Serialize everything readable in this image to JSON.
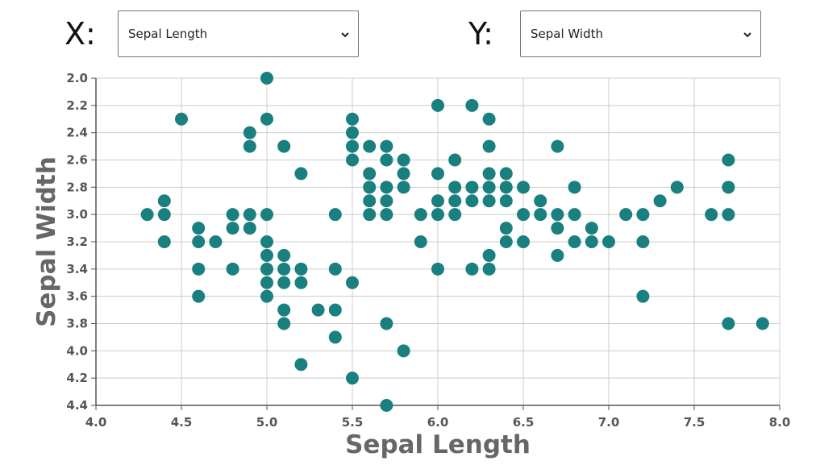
{
  "controls": {
    "x_label": "X:",
    "x_selected": "Sepal Length",
    "y_label": "Y:",
    "y_selected": "Sepal Width"
  },
  "colors": {
    "point": "#1a7f7f",
    "grid": "#cccccc",
    "axis": "#555555"
  },
  "chart_data": {
    "type": "scatter",
    "xlabel": "Sepal Length",
    "ylabel": "Sepal Width",
    "xlim": [
      4.0,
      8.0
    ],
    "ylim": [
      2.0,
      4.4
    ],
    "y_inverted": true,
    "grid": true,
    "xticks": [
      "4.0",
      "4.5",
      "5.0",
      "5.5",
      "6.0",
      "6.5",
      "7.0",
      "7.5",
      "8.0"
    ],
    "yticks": [
      "2.0",
      "2.2",
      "2.4",
      "2.6",
      "2.8",
      "3.0",
      "3.2",
      "3.4",
      "3.6",
      "3.8",
      "4.0",
      "4.2",
      "4.4"
    ],
    "points": [
      [
        5.0,
        2.0
      ],
      [
        4.5,
        2.3
      ],
      [
        5.0,
        2.3
      ],
      [
        5.5,
        2.3
      ],
      [
        6.3,
        2.3
      ],
      [
        6.0,
        2.2
      ],
      [
        6.2,
        2.2
      ],
      [
        4.9,
        2.4
      ],
      [
        5.5,
        2.4
      ],
      [
        4.9,
        2.5
      ],
      [
        5.1,
        2.5
      ],
      [
        5.5,
        2.5
      ],
      [
        5.6,
        2.5
      ],
      [
        5.7,
        2.5
      ],
      [
        6.3,
        2.5
      ],
      [
        6.7,
        2.5
      ],
      [
        5.5,
        2.6
      ],
      [
        5.7,
        2.6
      ],
      [
        5.8,
        2.6
      ],
      [
        6.1,
        2.6
      ],
      [
        7.7,
        2.6
      ],
      [
        5.2,
        2.7
      ],
      [
        5.6,
        2.7
      ],
      [
        5.8,
        2.7
      ],
      [
        6.0,
        2.7
      ],
      [
        6.3,
        2.7
      ],
      [
        6.4,
        2.7
      ],
      [
        5.6,
        2.8
      ],
      [
        5.7,
        2.8
      ],
      [
        5.8,
        2.8
      ],
      [
        6.1,
        2.8
      ],
      [
        6.2,
        2.8
      ],
      [
        6.3,
        2.8
      ],
      [
        6.4,
        2.8
      ],
      [
        6.5,
        2.8
      ],
      [
        6.8,
        2.8
      ],
      [
        7.4,
        2.8
      ],
      [
        7.7,
        2.8
      ],
      [
        4.4,
        2.9
      ],
      [
        5.6,
        2.9
      ],
      [
        5.7,
        2.9
      ],
      [
        6.0,
        2.9
      ],
      [
        6.1,
        2.9
      ],
      [
        6.2,
        2.9
      ],
      [
        6.3,
        2.9
      ],
      [
        6.4,
        2.9
      ],
      [
        6.6,
        2.9
      ],
      [
        7.3,
        2.9
      ],
      [
        4.3,
        3.0
      ],
      [
        4.4,
        3.0
      ],
      [
        4.8,
        3.0
      ],
      [
        4.9,
        3.0
      ],
      [
        5.0,
        3.0
      ],
      [
        5.4,
        3.0
      ],
      [
        5.6,
        3.0
      ],
      [
        5.7,
        3.0
      ],
      [
        5.9,
        3.0
      ],
      [
        6.0,
        3.0
      ],
      [
        6.1,
        3.0
      ],
      [
        6.5,
        3.0
      ],
      [
        6.6,
        3.0
      ],
      [
        6.7,
        3.0
      ],
      [
        6.8,
        3.0
      ],
      [
        7.1,
        3.0
      ],
      [
        7.2,
        3.0
      ],
      [
        7.6,
        3.0
      ],
      [
        7.7,
        3.0
      ],
      [
        4.6,
        3.1
      ],
      [
        4.8,
        3.1
      ],
      [
        4.9,
        3.1
      ],
      [
        6.4,
        3.1
      ],
      [
        6.7,
        3.1
      ],
      [
        6.9,
        3.1
      ],
      [
        4.4,
        3.2
      ],
      [
        4.6,
        3.2
      ],
      [
        4.7,
        3.2
      ],
      [
        5.0,
        3.2
      ],
      [
        5.9,
        3.2
      ],
      [
        6.4,
        3.2
      ],
      [
        6.5,
        3.2
      ],
      [
        6.8,
        3.2
      ],
      [
        6.9,
        3.2
      ],
      [
        7.0,
        3.2
      ],
      [
        7.2,
        3.2
      ],
      [
        5.0,
        3.3
      ],
      [
        5.1,
        3.3
      ],
      [
        6.3,
        3.3
      ],
      [
        6.7,
        3.3
      ],
      [
        4.6,
        3.4
      ],
      [
        4.8,
        3.4
      ],
      [
        5.0,
        3.4
      ],
      [
        5.1,
        3.4
      ],
      [
        5.2,
        3.4
      ],
      [
        5.4,
        3.4
      ],
      [
        6.0,
        3.4
      ],
      [
        6.2,
        3.4
      ],
      [
        6.3,
        3.4
      ],
      [
        5.0,
        3.5
      ],
      [
        5.1,
        3.5
      ],
      [
        5.2,
        3.5
      ],
      [
        5.5,
        3.5
      ],
      [
        4.6,
        3.6
      ],
      [
        5.0,
        3.6
      ],
      [
        7.2,
        3.6
      ],
      [
        5.1,
        3.7
      ],
      [
        5.3,
        3.7
      ],
      [
        5.4,
        3.7
      ],
      [
        5.1,
        3.8
      ],
      [
        5.7,
        3.8
      ],
      [
        7.7,
        3.8
      ],
      [
        7.9,
        3.8
      ],
      [
        5.4,
        3.9
      ],
      [
        5.8,
        4.0
      ],
      [
        5.2,
        4.1
      ],
      [
        5.5,
        4.2
      ],
      [
        5.7,
        4.4
      ]
    ]
  }
}
